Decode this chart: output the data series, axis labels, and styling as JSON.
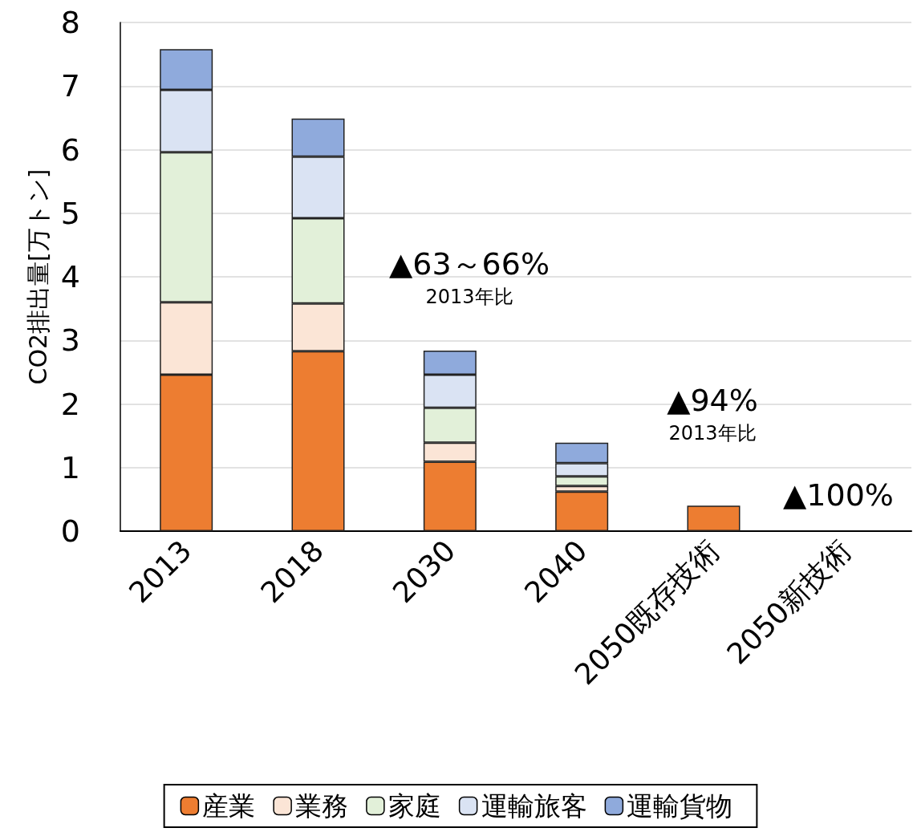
{
  "chart_data": {
    "type": "bar",
    "ylabel": "CO2排出量[万トン]",
    "stacked": true,
    "categories": [
      "2013",
      "2018",
      "2030",
      "2040",
      "2050既存技術",
      "2050新技術"
    ],
    "series": [
      {
        "name": "産業",
        "color": "#ed7d31",
        "values": [
          2.46,
          2.83,
          1.09,
          0.62,
          0.4,
          null
        ]
      },
      {
        "name": "業務",
        "color": "#fbe5d6",
        "values": [
          1.14,
          0.75,
          0.3,
          0.09,
          null,
          null
        ]
      },
      {
        "name": "家庭",
        "color": "#e2f0d9",
        "values": [
          2.36,
          1.34,
          0.55,
          0.15,
          null,
          null
        ]
      },
      {
        "name": "運輸旅客",
        "color": "#dae3f3",
        "values": [
          0.98,
          0.97,
          0.52,
          0.21,
          null,
          null
        ]
      },
      {
        "name": "運輸貨物",
        "color": "#8faadc",
        "values": [
          0.64,
          0.6,
          0.38,
          0.32,
          null,
          null
        ]
      }
    ],
    "ylim": [
      0,
      8
    ],
    "yticks": [
      0,
      1,
      2,
      3,
      4,
      5,
      6,
      7,
      8
    ],
    "grid": "y",
    "legend": "bottom",
    "annotations": [
      "▲63～66%\n2013年比",
      "▲94%\n2013年比",
      "▲100%"
    ]
  }
}
